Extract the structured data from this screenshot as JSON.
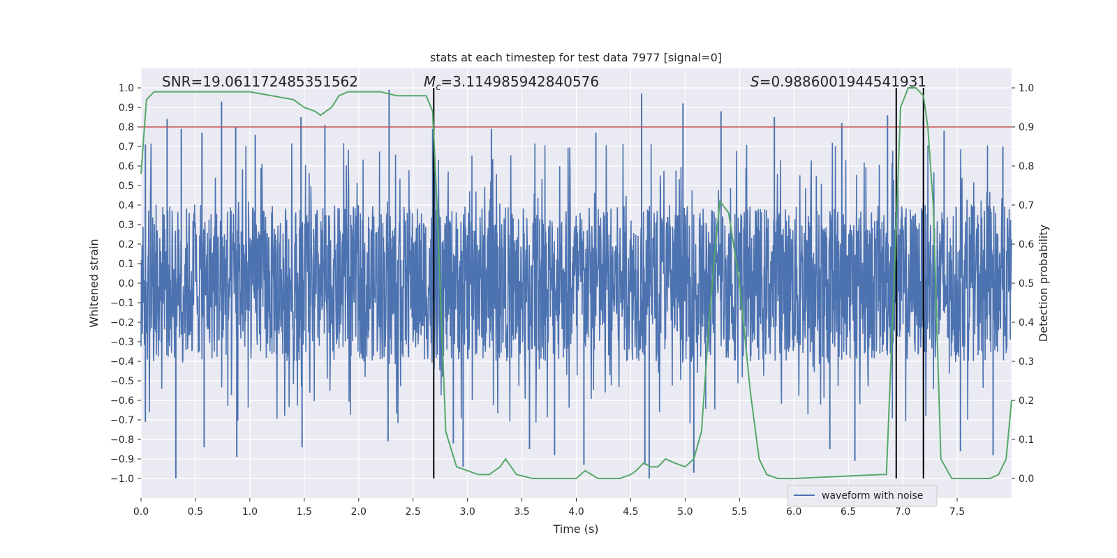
{
  "chart_data": {
    "type": "line",
    "title": "stats at each timestep for test data 7977 [signal=0]",
    "xlabel": "Time (s)",
    "ylabel_left": "Whitened strain",
    "ylabel_right": "Detection probability",
    "xlim": [
      0.0,
      8.0
    ],
    "ylim_left": [
      -1.1,
      1.1
    ],
    "ylim_right": [
      -0.05,
      1.05
    ],
    "xticks": [
      "0.0",
      "0.5",
      "1.0",
      "1.5",
      "2.0",
      "2.5",
      "3.0",
      "3.5",
      "4.0",
      "4.5",
      "5.0",
      "5.5",
      "6.0",
      "6.5",
      "7.0",
      "7.5"
    ],
    "xtick_values": [
      0.0,
      0.5,
      1.0,
      1.5,
      2.0,
      2.5,
      3.0,
      3.5,
      4.0,
      4.5,
      5.0,
      5.5,
      6.0,
      6.5,
      7.0,
      7.5
    ],
    "yticks_left": [
      "−1.0",
      "−0.9",
      "−0.8",
      "−0.7",
      "−0.6",
      "−0.5",
      "−0.4",
      "−0.3",
      "−0.2",
      "−0.1",
      "0.0",
      "0.1",
      "0.2",
      "0.3",
      "0.4",
      "0.5",
      "0.6",
      "0.7",
      "0.8",
      "0.9",
      "1.0"
    ],
    "ytick_values_left": [
      -1.0,
      -0.9,
      -0.8,
      -0.7,
      -0.6,
      -0.5,
      -0.4,
      -0.3,
      -0.2,
      -0.1,
      0.0,
      0.1,
      0.2,
      0.3,
      0.4,
      0.5,
      0.6,
      0.7,
      0.8,
      0.9,
      1.0
    ],
    "yticks_right": [
      "0.0",
      "0.1",
      "0.2",
      "0.3",
      "0.4",
      "0.5",
      "0.6",
      "0.7",
      "0.8",
      "0.9",
      "1.0"
    ],
    "ytick_values_right": [
      0.0,
      0.1,
      0.2,
      0.3,
      0.4,
      0.5,
      0.6,
      0.7,
      0.8,
      0.9,
      1.0
    ],
    "annotations": {
      "snr": "SNR=19.061172485351562",
      "mc_symbol": "M",
      "mc_sub": "c",
      "mc_value": "=3.114985942840576",
      "s_symbol": "S",
      "s_value": "=0.9886001944541931"
    },
    "threshold": {
      "value": 0.9,
      "axis": "right",
      "color": "#c44e52"
    },
    "vertical_lines": [
      2.69,
      6.94,
      7.19
    ],
    "legend": {
      "label": "waveform with noise",
      "location": "lower-right"
    },
    "series": [
      {
        "name": "waveform with noise",
        "axis": "left",
        "color": "#4c72b0",
        "note": "dense noisy strain trace, core envelope about ±0.4 with spikes to ±1.0",
        "spikes_up": [
          [
            0.04,
            0.71
          ],
          [
            0.24,
            0.84
          ],
          [
            0.37,
            0.79
          ],
          [
            0.56,
            0.77
          ],
          [
            0.74,
            0.93
          ],
          [
            0.87,
            0.8
          ],
          [
            1.05,
            0.76
          ],
          [
            1.47,
            0.85
          ],
          [
            1.69,
            0.81
          ],
          [
            2.28,
            0.99
          ],
          [
            2.68,
            0.79
          ],
          [
            3.22,
            0.79
          ],
          [
            4.18,
            0.77
          ],
          [
            4.6,
            0.97
          ],
          [
            4.98,
            0.92
          ],
          [
            5.33,
            0.88
          ],
          [
            5.82,
            0.85
          ],
          [
            6.44,
            0.82
          ],
          [
            6.86,
            0.86
          ],
          [
            7.19,
            0.85
          ],
          [
            7.38,
            0.78
          ],
          [
            7.92,
            0.7
          ]
        ],
        "spikes_down": [
          [
            0.04,
            -0.71
          ],
          [
            0.32,
            -1.0
          ],
          [
            0.58,
            -0.84
          ],
          [
            0.88,
            -0.89
          ],
          [
            1.48,
            -0.84
          ],
          [
            2.27,
            -0.81
          ],
          [
            2.87,
            -0.82
          ],
          [
            2.96,
            -0.94
          ],
          [
            3.57,
            -0.85
          ],
          [
            3.8,
            -0.88
          ],
          [
            4.07,
            -0.93
          ],
          [
            4.63,
            -0.93
          ],
          [
            4.67,
            -1.0
          ],
          [
            5.08,
            -0.97
          ],
          [
            6.33,
            -0.85
          ],
          [
            6.56,
            -0.91
          ],
          [
            7.19,
            -0.95
          ],
          [
            7.53,
            -0.86
          ],
          [
            7.83,
            -0.88
          ]
        ]
      },
      {
        "name": "detection probability",
        "axis": "right",
        "color": "#55a868",
        "x": [
          0.0,
          0.05,
          0.12,
          0.3,
          1.0,
          1.2,
          1.4,
          1.5,
          1.6,
          1.65,
          1.75,
          1.82,
          1.9,
          2.0,
          2.2,
          2.35,
          2.5,
          2.62,
          2.68,
          2.72,
          2.8,
          2.9,
          3.0,
          3.1,
          3.2,
          3.3,
          3.35,
          3.45,
          3.6,
          4.0,
          4.08,
          4.2,
          4.4,
          4.5,
          4.55,
          4.62,
          4.68,
          4.75,
          4.82,
          4.9,
          5.0,
          5.08,
          5.15,
          5.22,
          5.28,
          5.32,
          5.4,
          5.5,
          5.6,
          5.68,
          5.75,
          5.85,
          6.0,
          6.8,
          6.85,
          6.92,
          6.98,
          7.05,
          7.12,
          7.19,
          7.23,
          7.28,
          7.35,
          7.45,
          7.6,
          7.8,
          7.88,
          7.95,
          8.0
        ],
        "y": [
          0.78,
          0.97,
          0.99,
          0.99,
          0.99,
          0.98,
          0.97,
          0.95,
          0.94,
          0.93,
          0.95,
          0.98,
          0.99,
          0.99,
          0.99,
          0.98,
          0.98,
          0.98,
          0.94,
          0.7,
          0.12,
          0.03,
          0.02,
          0.01,
          0.01,
          0.03,
          0.05,
          0.01,
          0.0,
          0.0,
          0.02,
          0.0,
          0.0,
          0.01,
          0.02,
          0.04,
          0.03,
          0.03,
          0.05,
          0.04,
          0.03,
          0.05,
          0.12,
          0.4,
          0.6,
          0.71,
          0.68,
          0.5,
          0.22,
          0.05,
          0.01,
          0.0,
          0.0,
          0.01,
          0.01,
          0.5,
          0.95,
          1.0,
          1.0,
          0.98,
          0.9,
          0.7,
          0.05,
          0.0,
          0.0,
          0.0,
          0.01,
          0.05,
          0.2
        ]
      }
    ]
  },
  "colors": {
    "plot_bg": "#eaeaf2",
    "grid": "#ffffff",
    "text": "#262626",
    "vline": "#000000"
  }
}
